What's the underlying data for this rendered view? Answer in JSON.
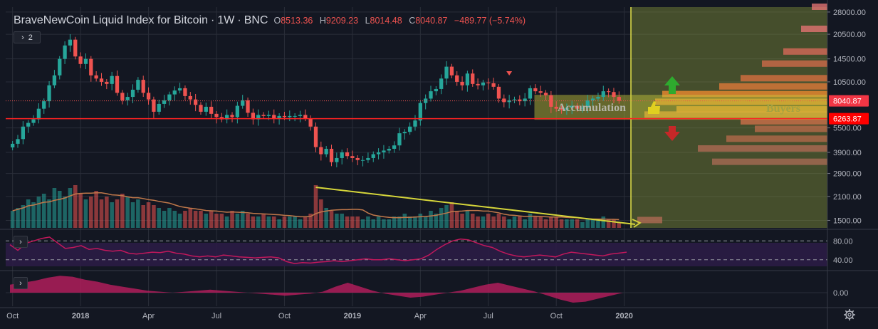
{
  "header": {
    "title": "BraveNewCoin Liquid Index for Bitcoin",
    "interval": "1W",
    "exchange": "BNC",
    "ohlc": [
      {
        "key": "O",
        "value": "8513.36"
      },
      {
        "key": "H",
        "value": "9209.23"
      },
      {
        "key": "L",
        "value": "8014.48"
      },
      {
        "key": "C",
        "value": "8040.87"
      },
      {
        "key": "",
        "value": "−489.77 (−5.74%)"
      }
    ],
    "collapsed_count": "2"
  },
  "colors": {
    "background": "#131722",
    "grid": "#2a2e39",
    "up": "#26a69a",
    "down": "#ef5350",
    "support_line": "#ff2222",
    "trend_line": "#d6d63a",
    "rsi_line": "#c2185b",
    "rsi_band": "#2b1c45",
    "oscillator": "#b01d5a",
    "ma_line": "#c0784a",
    "price_label_current": "#f23645",
    "price_label_support": "#ff0000",
    "arrow_up": "#2eaa2e",
    "arrow_down": "#c62828"
  },
  "chart_data": [
    {
      "type": "candlestick",
      "title": "BraveNewCoin Liquid Index for Bitcoin",
      "interval": "1W",
      "scale": "log",
      "y_ticks": [
        1500,
        2100,
        2900,
        3900,
        5500,
        10500,
        14500,
        20500,
        28000
      ],
      "y_tick_labels": [
        "1500.00",
        "2100.00",
        "2900.00",
        "3900.00",
        "5500.00",
        "10500.00",
        "14500.00",
        "20500.00",
        "28000.00"
      ],
      "ylim": [
        1350,
        30000
      ],
      "x_tick_labels": [
        "Oct",
        "2018",
        "Apr",
        "Jul",
        "Oct",
        "2019",
        "Apr",
        "Jul",
        "Oct",
        "2020"
      ],
      "x_tick_bold": [
        false,
        true,
        false,
        false,
        false,
        true,
        false,
        false,
        false,
        true
      ],
      "x_tick_weeks": [
        0,
        13,
        26,
        39,
        52,
        65,
        78,
        91,
        104,
        117
      ],
      "weeks": 120,
      "close": [
        4400,
        4700,
        5600,
        5900,
        6200,
        7200,
        8000,
        10000,
        11500,
        14500,
        17500,
        19000,
        15000,
        13500,
        14500,
        11500,
        11000,
        10500,
        10200,
        11400,
        9000,
        8100,
        8500,
        9400,
        10800,
        9000,
        8200,
        6900,
        7700,
        8100,
        8800,
        9300,
        9600,
        8600,
        8200,
        7600,
        6900,
        7400,
        6700,
        6400,
        6200,
        6600,
        6400,
        7500,
        8100,
        6800,
        6200,
        6600,
        6500,
        6600,
        6300,
        6500,
        6400,
        6500,
        6500,
        6600,
        6300,
        5600,
        4200,
        3800,
        4100,
        3400,
        3600,
        3900,
        3700,
        3600,
        3500,
        3500,
        3600,
        3800,
        3900,
        4000,
        4100,
        4300,
        5100,
        5200,
        5600,
        6100,
        7800,
        8300,
        9200,
        9500,
        11000,
        13000,
        11500,
        10500,
        10000,
        11800,
        10200,
        10000,
        10400,
        10300,
        9800,
        8300,
        7900,
        8100,
        8200,
        8000,
        8300,
        9600,
        9200,
        9000,
        8700,
        7400,
        7200,
        7100,
        7300,
        7500,
        7200,
        7300,
        8100,
        8300,
        8500,
        9200,
        9100,
        8500,
        8040
      ],
      "current_price": 8040.87,
      "support_level": 6263.87,
      "price_labels": [
        "8040.87",
        "6263.87"
      ],
      "indicator_labels": [
        {
          "text": "Accumulation",
          "color": "#b5b5a8"
        },
        {
          "text": "Buyers",
          "color": "#a3a142"
        }
      ]
    },
    {
      "type": "bar",
      "name": "Volume",
      "values_relative": [
        0.3,
        0.35,
        0.4,
        0.5,
        0.45,
        0.55,
        0.6,
        0.5,
        0.7,
        0.65,
        0.55,
        0.7,
        0.75,
        0.6,
        0.5,
        0.55,
        0.65,
        0.5,
        0.55,
        0.45,
        0.5,
        0.6,
        0.55,
        0.45,
        0.5,
        0.4,
        0.45,
        0.4,
        0.35,
        0.3,
        0.35,
        0.3,
        0.25,
        0.3,
        0.35,
        0.3,
        0.3,
        0.25,
        0.3,
        0.25,
        0.25,
        0.2,
        0.3,
        0.25,
        0.3,
        0.25,
        0.2,
        0.2,
        0.25,
        0.2,
        0.2,
        0.15,
        0.2,
        0.2,
        0.2,
        0.15,
        0.2,
        0.25,
        0.75,
        0.5,
        0.35,
        0.3,
        0.25,
        0.25,
        0.2,
        0.2,
        0.2,
        0.15,
        0.2,
        0.15,
        0.2,
        0.15,
        0.15,
        0.2,
        0.2,
        0.25,
        0.2,
        0.2,
        0.25,
        0.2,
        0.3,
        0.25,
        0.35,
        0.4,
        0.45,
        0.3,
        0.25,
        0.3,
        0.25,
        0.2,
        0.2,
        0.25,
        0.2,
        0.25,
        0.2,
        0.15,
        0.2,
        0.2,
        0.15,
        0.25,
        0.2,
        0.2,
        0.15,
        0.2,
        0.2,
        0.15,
        0.15,
        0.15,
        0.15,
        0.1,
        0.15,
        0.15,
        0.15,
        0.2,
        0.15,
        0.15,
        0.1
      ]
    },
    {
      "type": "line",
      "name": "RSI",
      "y_tick_labels": [
        "80.00",
        "40.00"
      ],
      "y_ticks": [
        80,
        40
      ],
      "ylim": [
        20,
        100
      ],
      "values": [
        72,
        60,
        75,
        80,
        85,
        88,
        76,
        64,
        66,
        70,
        62,
        64,
        60,
        58,
        60,
        54,
        52,
        54,
        56,
        55,
        58,
        54,
        52,
        48,
        46,
        48,
        46,
        50,
        48,
        46,
        45,
        44,
        45,
        46,
        44,
        36,
        32,
        34,
        33,
        35,
        36,
        38,
        36,
        38,
        40,
        42,
        40,
        40,
        42,
        40,
        38,
        40,
        42,
        50,
        62,
        72,
        80,
        84,
        82,
        76,
        70,
        66,
        58,
        52,
        48,
        46,
        48,
        50,
        48,
        46,
        52,
        56,
        54,
        52,
        50,
        48,
        52,
        54,
        56
      ]
    },
    {
      "type": "area",
      "name": "Oscillator",
      "y_tick_labels": [
        "0.00"
      ],
      "y_ticks": [
        0
      ],
      "values": [
        0.4,
        0.5,
        0.6,
        0.75,
        0.85,
        0.8,
        0.65,
        0.55,
        0.4,
        0.3,
        0.2,
        0.1,
        0.05,
        0.0,
        0.05,
        0.1,
        0.15,
        0.1,
        0.05,
        0.0,
        -0.05,
        -0.1,
        -0.15,
        -0.1,
        -0.05,
        0.05,
        0.3,
        0.5,
        0.3,
        0.1,
        -0.05,
        -0.15,
        -0.25,
        -0.2,
        -0.1,
        0.0,
        0.1,
        0.25,
        0.4,
        0.5,
        0.35,
        0.2,
        0.05,
        -0.15,
        -0.35,
        -0.5,
        -0.45,
        -0.3,
        -0.15,
        0.0
      ]
    }
  ]
}
